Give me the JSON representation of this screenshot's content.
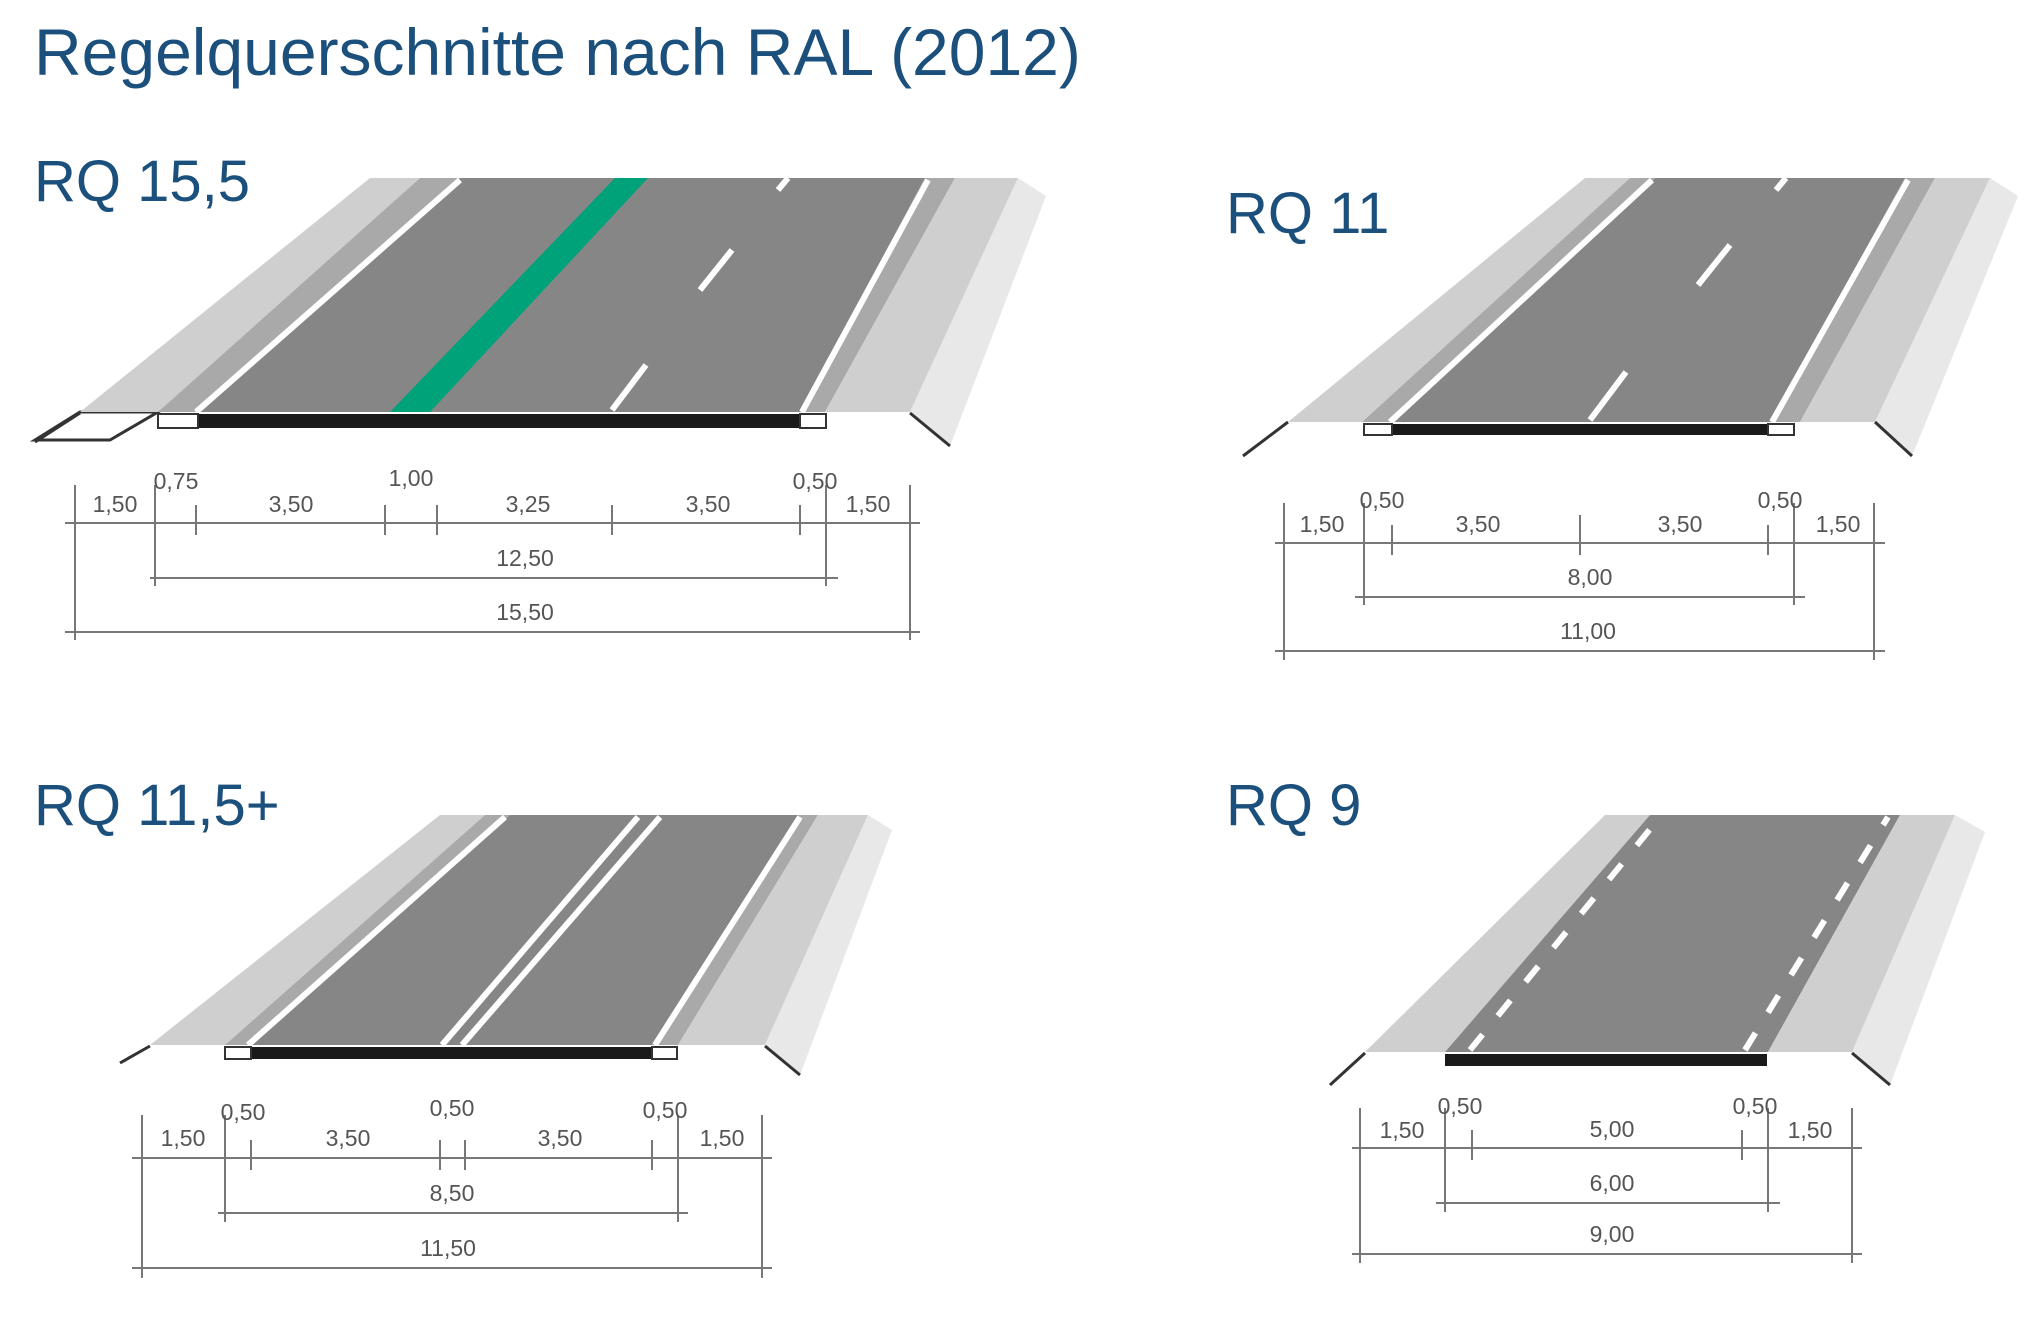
{
  "title": "Regelquerschnitte nach RAL (2012)",
  "colors": {
    "title_text": "#1b4f7c",
    "asphalt": "#868686",
    "shoulder": "#a9a9a9",
    "verge": "#cfcfcf",
    "slope": "#e8e8e8",
    "marking": "#ffffff",
    "green_strip": "#00a27a",
    "edge_strip": "#1a1a1a",
    "dimension_lines": "#777777"
  },
  "sections": [
    {
      "id": "rq155",
      "label": "RQ 15,5",
      "segments": [
        "1,50",
        "0,75",
        "3,50",
        "1,00",
        "3,25",
        "3,50",
        "0,50",
        "1,50"
      ],
      "paved_width": "12,50",
      "total_width": "15,50"
    },
    {
      "id": "rq11",
      "label": "RQ 11",
      "segments": [
        "1,50",
        "0,50",
        "3,50",
        "3,50",
        "0,50",
        "1,50"
      ],
      "paved_width": "8,00",
      "total_width": "11,00"
    },
    {
      "id": "rq115",
      "label": "RQ 11,5+",
      "segments": [
        "1,50",
        "0,50",
        "3,50",
        "0,50",
        "3,50",
        "0,50",
        "1,50"
      ],
      "paved_width": "8,50",
      "total_width": "11,50"
    },
    {
      "id": "rq9",
      "label": "RQ 9",
      "segments": [
        "1,50",
        "0,50",
        "5,00",
        "0,50",
        "1,50"
      ],
      "paved_width": "6,00",
      "total_width": "9,00"
    }
  ]
}
